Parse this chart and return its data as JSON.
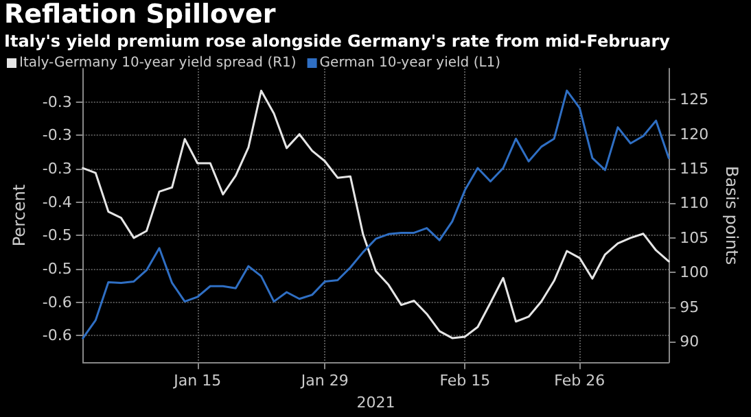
{
  "chart_data": {
    "type": "line",
    "title": "Reflation Spillover",
    "subtitle": "Italy's yield premium rose alongside Germany's rate from mid-February",
    "xlabel": "2021",
    "ylabel": "Percent",
    "y2label": "Basis points",
    "categories": [
      null,
      null,
      null,
      null,
      null,
      null,
      null,
      null,
      null,
      "Jan 15",
      null,
      null,
      null,
      null,
      null,
      null,
      null,
      null,
      null,
      "Jan 29",
      null,
      null,
      null,
      null,
      null,
      null,
      null,
      null,
      null,
      null,
      "Feb 15",
      null,
      null,
      null,
      null,
      null,
      null,
      null,
      null,
      "Feb 26",
      null,
      null,
      null,
      null,
      null,
      null,
      null
    ],
    "series": [
      {
        "name": "Italy-Germany 10-year yield spread (R1)",
        "color": "#e6e6e6",
        "axis": "y2",
        "values": [
          115.1,
          114.4,
          108.8,
          107.9,
          105.0,
          106.0,
          111.7,
          112.3,
          119.3,
          115.8,
          115.8,
          111.3,
          114.0,
          118.1,
          126.3,
          123.0,
          118.0,
          120.0,
          117.6,
          116.1,
          113.7,
          113.9,
          105.5,
          100.2,
          98.2,
          95.3,
          95.9,
          94.0,
          91.5,
          90.5,
          90.7,
          92.1,
          95.6,
          99.2,
          92.9,
          93.6,
          95.8,
          98.8,
          103.1,
          102.1,
          99.1,
          102.6,
          104.2,
          105.0,
          105.6,
          103.2,
          101.6
        ]
      },
      {
        "name": "German 10-year yield (L1)",
        "color": "#2f6fc4",
        "values": [
          -0.604,
          -0.577,
          -0.52,
          -0.521,
          -0.519,
          -0.502,
          -0.469,
          -0.521,
          -0.549,
          -0.542,
          -0.526,
          -0.526,
          -0.529,
          -0.496,
          -0.511,
          -0.549,
          -0.535,
          -0.545,
          -0.539,
          -0.519,
          -0.517,
          -0.498,
          -0.475,
          -0.455,
          -0.448,
          -0.446,
          -0.446,
          -0.439,
          -0.457,
          -0.429,
          -0.382,
          -0.349,
          -0.369,
          -0.349,
          -0.305,
          -0.339,
          -0.317,
          -0.305,
          -0.233,
          -0.259,
          -0.334,
          -0.352,
          -0.288,
          -0.312,
          -0.301,
          -0.278,
          -0.334
        ]
      }
    ],
    "ylim": [
      -0.64,
      -0.2
    ],
    "yticks": [
      {
        "value": -0.6,
        "label": "-0.6"
      },
      {
        "value": -0.55,
        "label": "-0.6"
      },
      {
        "value": -0.5,
        "label": "-0.5"
      },
      {
        "value": -0.45,
        "label": "-0.5"
      },
      {
        "value": -0.4,
        "label": "-0.4"
      },
      {
        "value": -0.35,
        "label": "-0.3"
      },
      {
        "value": -0.3,
        "label": "-0.3"
      },
      {
        "value": -0.25,
        "label": "-0.3"
      }
    ],
    "y2lim": [
      87,
      129.5
    ],
    "y2ticks": [
      90,
      95,
      100,
      105,
      110,
      115,
      120,
      125
    ],
    "grid": true,
    "legend": "top left",
    "marker": "none",
    "line_style": "solid"
  }
}
